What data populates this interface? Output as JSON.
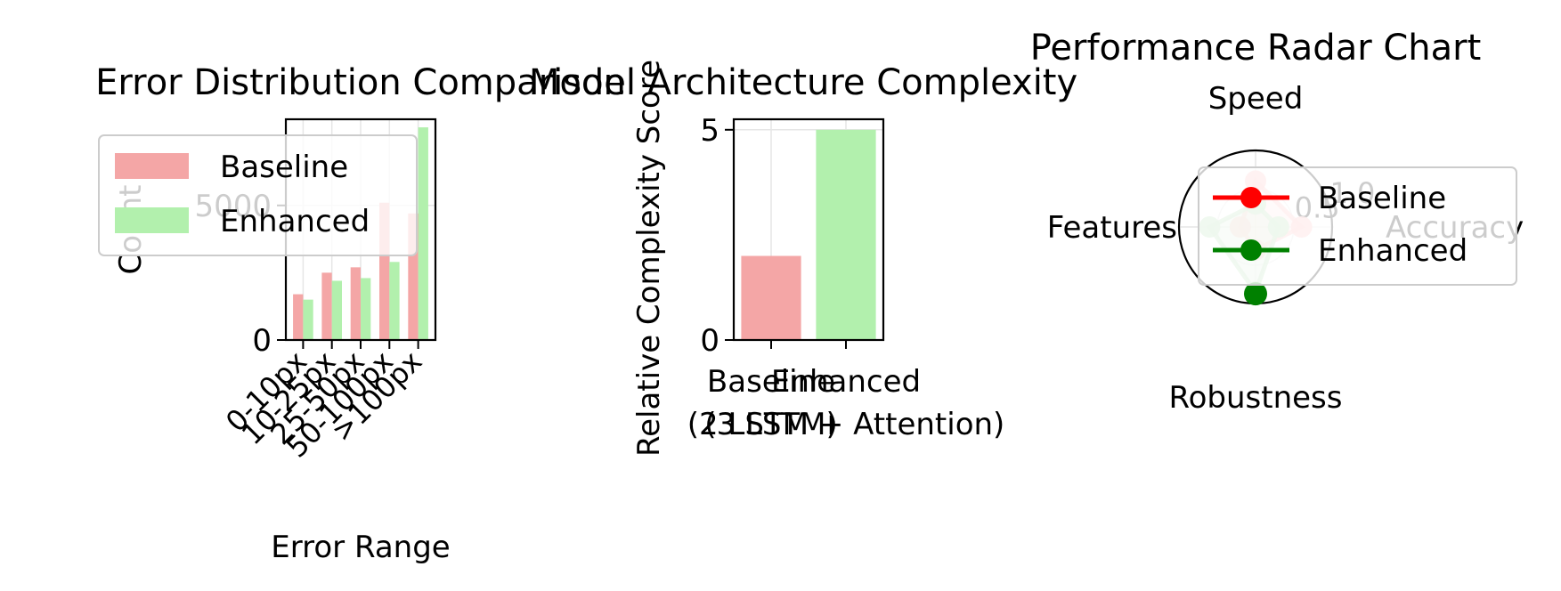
{
  "chart_data": [
    {
      "type": "bar",
      "title": "Error Distribution Comparison",
      "xlabel": "Error Range",
      "ylabel": "Count",
      "categories": [
        "0-10px",
        "10-25px",
        "25-50px",
        "50-100px",
        ">100px"
      ],
      "series": [
        {
          "name": "Baseline",
          "values": [
            1700,
            2500,
            2700,
            5100,
            4700
          ],
          "color": "#f4a6a6"
        },
        {
          "name": "Enhanced",
          "values": [
            1500,
            2200,
            2300,
            2900,
            7900
          ],
          "color": "#b2f0ad"
        }
      ],
      "ylim": [
        0,
        8200
      ],
      "yticks": [
        0,
        5000
      ],
      "ytick_labels": [
        "0",
        "5000"
      ],
      "grid": true,
      "legend": "upper-left"
    },
    {
      "type": "bar",
      "title": "Model Architecture Complexity",
      "ylabel": "Relative Complexity Score",
      "categories": [
        "Baseline\n(3 LSTM)",
        "Enhanced\n(2 LSTM + Attention)"
      ],
      "values": [
        2,
        5
      ],
      "colors": [
        "#f4a6a6",
        "#b2f0ad"
      ],
      "ylim": [
        0,
        5.25
      ],
      "yticks": [
        0,
        5
      ],
      "ytick_labels": [
        "0",
        "5"
      ],
      "grid": true
    },
    {
      "type": "radar",
      "title": "Performance Radar Chart",
      "axes": [
        "Accuracy",
        "Speed",
        "Features",
        "Robustness"
      ],
      "rlim": [
        0,
        1.0
      ],
      "rticks": [
        0.5,
        1.0
      ],
      "rtick_labels": [
        "0.5",
        "1.0"
      ],
      "series": [
        {
          "name": "Baseline",
          "values": [
            0.6,
            0.6,
            0.2,
            0.3
          ],
          "color": "#ff0000"
        },
        {
          "name": "Enhanced",
          "values": [
            0.3,
            0.3,
            0.6,
            0.85
          ],
          "color": "#008000"
        }
      ],
      "legend": "right"
    }
  ]
}
